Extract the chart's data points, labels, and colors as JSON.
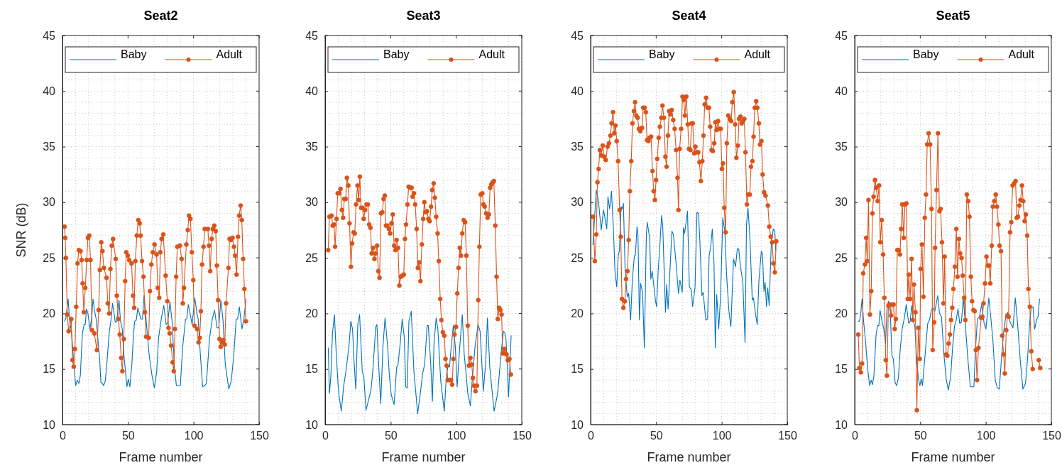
{
  "chart_data": [
    {
      "type": "line",
      "title": "Seat2",
      "xlabel": "Frame number",
      "ylabel": "SNR (dB)",
      "xlim": [
        0,
        150
      ],
      "xticks": [
        0,
        50,
        100,
        150
      ],
      "ylim": [
        10,
        45
      ],
      "yticks": [
        10,
        15,
        20,
        25,
        30,
        35,
        40,
        45
      ],
      "grid": true,
      "legend": "top",
      "series": [
        {
          "name": "Baby",
          "color": "#0072bd",
          "marker": "none",
          "x": [
            1.6,
            2.6,
            4.3,
            5.5,
            7.0,
            8.8,
            10.1,
            11.2,
            12.5,
            13.6,
            15.2,
            16.5,
            17.4,
            18.3,
            19.4,
            21.0,
            22.3,
            23.3,
            24.4,
            25.7,
            28.4,
            29.3,
            30.4,
            31.3,
            32.6,
            33.8,
            35.6,
            37.1,
            38.2,
            40.3,
            41.4,
            43.1,
            44.3,
            45.6,
            47.0,
            49.2,
            50.2,
            51.4,
            52.9,
            54.2,
            55.1,
            56.3,
            57.5,
            59.8,
            61.0,
            62.2,
            63.3,
            66.1,
            68.3,
            70.1,
            71.9,
            73.3,
            75.5,
            77.3,
            79.1,
            80.2,
            82.0,
            83.6,
            85.4,
            86.9,
            89.9,
            91.7,
            93.9,
            94.8,
            96.0,
            97.5,
            98.9,
            100.9,
            102.6,
            103.5,
            105.3,
            106.9,
            108.4,
            109.8,
            112.2,
            114.3,
            116.0,
            117.9,
            119.2,
            120.8,
            122.4,
            124.2,
            126.9,
            128.7,
            130.6,
            132.5,
            133.6,
            134.9,
            136.9,
            138.4,
            140.0
          ],
          "values": [
            19.3,
            19.6,
            21.3,
            19.3,
            18.2,
            15.2,
            13.5,
            14.0,
            13.7,
            14.4,
            18.2,
            19.0,
            19.0,
            20.4,
            20.0,
            18.6,
            19.6,
            21.3,
            20.3,
            19.5,
            15.8,
            13.8,
            13.7,
            13.5,
            13.9,
            15.4,
            18.2,
            19.5,
            20.9,
            19.2,
            19.3,
            21.2,
            19.3,
            18.6,
            16.1,
            13.4,
            14.1,
            13.4,
            15.4,
            18.2,
            19.3,
            19.4,
            20.5,
            19.5,
            19.5,
            21.6,
            20.1,
            16.3,
            14.4,
            13.3,
            14.8,
            17.8,
            19.6,
            20.7,
            19.0,
            19.1,
            21.0,
            19.3,
            15.2,
            13.5,
            13.5,
            17.0,
            19.5,
            19.5,
            20.8,
            19.9,
            19.0,
            21.4,
            20.0,
            19.5,
            16.1,
            13.4,
            13.5,
            13.7,
            17.8,
            19.5,
            20.3,
            18.7,
            18.7,
            21.2,
            19.5,
            15.4,
            13.2,
            13.9,
            16.1,
            19.5,
            19.5,
            20.6,
            18.6,
            19.5,
            21.3
          ]
        },
        {
          "name": "Adult",
          "color": "#d95319",
          "marker": "circle",
          "x": [
            1.6,
            2.1,
            2.6,
            3.7,
            4.7,
            6.7,
            7.6,
            8.6,
            9.5,
            10.5,
            11.5,
            12.5,
            13.8,
            14.6,
            15.4,
            16.3,
            17.4,
            18.5,
            19.4,
            20.5,
            21.4,
            22.5,
            24.3,
            26.3,
            27.6,
            28.5,
            29.6,
            30.5,
            31.6,
            33.6,
            34.6,
            35.6,
            36.6,
            37.6,
            38.6,
            40.6,
            41.5,
            42.6,
            43.7,
            44.8,
            45.7,
            46.8,
            47.8,
            48.7,
            49.8,
            50.9,
            52.7,
            53.8,
            54.7,
            55.6,
            56.7,
            57.8,
            58.9,
            59.6,
            60.7,
            61.8,
            62.9,
            63.8,
            65.8,
            66.7,
            67.8,
            68.9,
            70.2,
            71.8,
            72.7,
            73.8,
            74.7,
            75.6,
            76.9,
            78.7,
            80.0,
            80.9,
            81.8,
            82.9,
            84.0,
            84.9,
            85.8,
            86.7,
            87.6,
            89.6,
            90.9,
            91.8,
            92.7,
            94.5,
            95.6,
            96.5,
            97.6,
            98.7,
            99.8,
            100.7,
            102.7,
            103.8,
            104.7,
            105.6,
            106.5,
            107.6,
            108.5,
            110.9,
            111.8,
            112.7,
            113.8,
            114.7,
            115.8,
            116.9,
            117.8,
            118.7,
            119.8,
            120.7,
            121.8,
            122.7,
            123.8,
            124.8,
            126.6,
            127.5,
            128.6,
            129.7,
            130.8,
            131.7,
            132.8,
            133.9,
            134.8,
            135.9,
            136.8,
            137.8,
            138.8,
            139.9
          ],
          "values": [
            27.8,
            26.8,
            25.0,
            19.9,
            18.4,
            19.5,
            15.8,
            15.2,
            16.8,
            20.6,
            24.5,
            25.7,
            25.6,
            24.8,
            22.7,
            20.1,
            22.3,
            24.8,
            26.8,
            27.0,
            24.8,
            18.5,
            18.2,
            16.7,
            20.3,
            23.9,
            26.4,
            25.6,
            24.1,
            23.2,
            20.9,
            20.0,
            24.0,
            26.1,
            26.7,
            24.9,
            21.6,
            19.5,
            18.1,
            16.0,
            14.8,
            17.7,
            22.9,
            25.5,
            25.2,
            24.8,
            24.5,
            21.6,
            20.5,
            24.7,
            27.0,
            28.4,
            28.1,
            27.0,
            24.7,
            23.3,
            20.1,
            17.9,
            17.8,
            22.0,
            24.4,
            25.5,
            26.2,
            25.3,
            22.3,
            21.4,
            25.5,
            26.7,
            27.1,
            23.4,
            21.1,
            18.7,
            18.2,
            17.1,
            15.6,
            14.8,
            18.6,
            23.3,
            26.0,
            26.1,
            24.9,
            20.9,
            22.3,
            26.2,
            27.5,
            28.8,
            28.5,
            25.5,
            23.0,
            18.9,
            18.6,
            17.4,
            17.8,
            20.2,
            24.4,
            26.0,
            27.6,
            27.6,
            26.1,
            23.8,
            26.7,
            27.6,
            27.9,
            27.4,
            24.3,
            21.2,
            17.7,
            17.0,
            17.4,
            17.6,
            17.2,
            20.9,
            24.1,
            26.7,
            26.6,
            26.8,
            26.0,
            25.2,
            23.5,
            26.9,
            28.8,
            29.7,
            28.4,
            24.9,
            22.2,
            19.3
          ]
        }
      ]
    },
    {
      "type": "line",
      "title": "Seat3",
      "xlabel": "Frame number",
      "xlim": [
        0,
        150
      ],
      "xticks": [
        0,
        50,
        100,
        150
      ],
      "ylim": [
        10,
        45
      ],
      "yticks": [
        10,
        15,
        20,
        25,
        30,
        35,
        40,
        45
      ],
      "grid": true,
      "legend": "top",
      "series": [
        {
          "name": "Baby",
          "color": "#0072bd",
          "marker": "none",
          "x": [
            2.4,
            3.3,
            4.4,
            5.6,
            7.1,
            8.5,
            10.2,
            12.3,
            14.2,
            16.0,
            18.2,
            19.6,
            20.9,
            22.1,
            23.4,
            24.9,
            26.3,
            28.3,
            29.5,
            31.2,
            33.3,
            35.0,
            36.4,
            38.6,
            39.5,
            41.0,
            42.4,
            44.1,
            45.7,
            47.7,
            49.0,
            50.4,
            52.6,
            54.6,
            55.5,
            57.2,
            58.8,
            60.4,
            61.5,
            62.6,
            63.9,
            65.7,
            67.7,
            70.6,
            72.6,
            74.4,
            75.9,
            77.8,
            78.7,
            80.5,
            81.8,
            83.1,
            84.7,
            86.0,
            88.2,
            90.9,
            92.5,
            93.6,
            94.9,
            95.8,
            97.8,
            99.3,
            100.7,
            102.7,
            104.6,
            106.1,
            107.5,
            108.8,
            110.8,
            112.2,
            114.4,
            116.7,
            118.2,
            120.7,
            122.5,
            123.8,
            125.6,
            127.3,
            128.9,
            131.1,
            132.0,
            134.1,
            136.0,
            137.0,
            138.0,
            139.0,
            139.9,
            141.9
          ],
          "values": [
            16.9,
            12.8,
            14.4,
            18.2,
            19.9,
            16.3,
            13.0,
            11.2,
            13.5,
            14.9,
            17.1,
            19.3,
            18.6,
            15.6,
            13.2,
            19.0,
            19.9,
            14.8,
            14.3,
            11.3,
            12.3,
            13.1,
            14.9,
            18.8,
            19.0,
            15.0,
            11.9,
            17.0,
            19.6,
            17.0,
            14.4,
            12.7,
            11.8,
            15.2,
            15.3,
            17.2,
            19.5,
            17.8,
            13.4,
            13.3,
            19.3,
            20.2,
            14.8,
            11.0,
            12.8,
            14.6,
            15.4,
            18.9,
            18.9,
            15.6,
            12.1,
            17.4,
            19.6,
            18.6,
            13.9,
            11.2,
            14.4,
            15.2,
            15.2,
            16.5,
            18.9,
            17.0,
            13.4,
            17.0,
            19.9,
            16.3,
            14.6,
            12.8,
            11.7,
            14.0,
            17.1,
            19.0,
            18.4,
            13.0,
            15.6,
            19.6,
            15.2,
            13.1,
            11.2,
            12.5,
            13.3,
            16.3,
            18.4,
            18.3,
            17.6,
            15.0,
            12.5,
            18.0
          ]
        },
        {
          "name": "Adult",
          "color": "#d95319",
          "marker": "circle",
          "x": [
            2.3,
            3.3,
            4.9,
            5.8,
            6.9,
            7.6,
            8.7,
            9.6,
            10.8,
            11.7,
            12.8,
            13.7,
            14.6,
            15.7,
            16.6,
            17.7,
            18.6,
            19.7,
            20.6,
            21.7,
            22.6,
            23.6,
            24.7,
            25.6,
            26.5,
            27.4,
            28.5,
            29.4,
            30.5,
            31.6,
            32.6,
            33.6,
            34.6,
            35.5,
            36.6,
            37.6,
            38.6,
            39.6,
            40.6,
            41.5,
            42.6,
            43.6,
            44.6,
            45.5,
            46.4,
            47.5,
            48.6,
            49.6,
            50.6,
            51.6,
            52.6,
            53.6,
            54.5,
            55.6,
            56.6,
            57.8,
            58.9,
            60.0,
            60.9,
            61.7,
            62.8,
            63.7,
            64.9,
            66.0,
            66.7,
            67.8,
            68.7,
            69.8,
            70.7,
            71.8,
            72.7,
            73.8,
            74.8,
            75.7,
            76.6,
            77.7,
            78.8,
            79.7,
            80.8,
            81.7,
            82.8,
            83.7,
            84.7,
            85.8,
            86.7,
            87.8,
            88.7,
            89.8,
            90.9,
            91.8,
            92.7,
            93.6,
            94.9,
            96.0,
            96.9,
            97.8,
            98.7,
            99.8,
            100.8,
            101.8,
            102.7,
            103.6,
            104.6,
            105.7,
            106.8,
            107.7,
            108.8,
            109.7,
            110.8,
            111.8,
            112.7,
            113.6,
            114.7,
            115.8,
            116.8,
            117.7,
            118.7,
            119.9,
            120.8,
            121.7,
            122.8,
            123.9,
            124.9,
            125.9,
            126.8,
            127.8,
            128.7,
            129.8,
            130.8,
            131.7,
            132.8,
            133.7,
            134.6,
            135.5,
            136.6,
            137.5,
            138.4,
            139.3,
            140.6,
            141.7
          ],
          "values": [
            25.7,
            28.7,
            28.8,
            27.9,
            28.0,
            26.0,
            28.5,
            30.8,
            30.8,
            31.2,
            29.3,
            28.6,
            30.3,
            30.3,
            32.2,
            31.5,
            28.1,
            24.2,
            26.3,
            27.3,
            27.2,
            29.8,
            31.5,
            30.2,
            32.3,
            29.5,
            29.5,
            28.5,
            29.3,
            29.8,
            29.8,
            28.0,
            27.7,
            25.4,
            25.9,
            24.9,
            25.4,
            26.1,
            23.8,
            23.2,
            29.0,
            29.1,
            30.3,
            30.6,
            27.9,
            27.9,
            27.6,
            27.2,
            28.1,
            28.9,
            26.1,
            25.7,
            26.6,
            25.9,
            22.5,
            23.3,
            23.4,
            23.5,
            26.7,
            28.0,
            29.8,
            31.4,
            31.3,
            31.3,
            30.5,
            30.8,
            29.8,
            27.6,
            24.1,
            24.6,
            22.9,
            26.2,
            28.5,
            30.0,
            29.1,
            29.2,
            28.5,
            28.3,
            29.6,
            31.1,
            31.7,
            30.4,
            28.7,
            27.2,
            24.7,
            21.3,
            19.4,
            18.3,
            18.0,
            15.9,
            15.3,
            14.0,
            14.0,
            14.0,
            13.6,
            15.9,
            18.1,
            18.8,
            21.8,
            24.1,
            25.9,
            25.2,
            27.2,
            28.4,
            28.2,
            25.2,
            18.9,
            15.3,
            16.0,
            15.4,
            14.2,
            13.5,
            13.0,
            13.5,
            21.2,
            26.0,
            30.7,
            30.8,
            29.8,
            29.6,
            29.0,
            28.6,
            28.9,
            31.3,
            31.6,
            31.8,
            31.9,
            27.9,
            23.3,
            19.5,
            20.5,
            20.3,
            19.9,
            16.4,
            16.8,
            16.4,
            16.3,
            15.8,
            15.9,
            14.5
          ]
        }
      ]
    },
    {
      "type": "line",
      "title": "Seat4",
      "xlabel": "Frame number",
      "xlim": [
        0,
        150
      ],
      "xticks": [
        0,
        50,
        100,
        150
      ],
      "ylim": [
        10,
        45
      ],
      "yticks": [
        10,
        15,
        20,
        25,
        30,
        35,
        40,
        45
      ],
      "grid": true,
      "legend": "top",
      "series": [
        {
          "name": "Baby",
          "color": "#0072bd",
          "marker": "none",
          "x": [
            1.8,
            4.3,
            5.9,
            6.9,
            8.1,
            9.2,
            9.9,
            12.3,
            13.2,
            14.5,
            15.9,
            17.4,
            18.6,
            19.9,
            21.1,
            22.0,
            23.2,
            24.1,
            25.0,
            26.3,
            27.9,
            29.0,
            30.5,
            31.9,
            33.4,
            34.1,
            35.4,
            36.1,
            37.2,
            38.1,
            39.6,
            41.0,
            42.5,
            43.2,
            45.0,
            45.9,
            47.0,
            49.4,
            50.3,
            51.5,
            52.8,
            54.1,
            55.0,
            57.1,
            58.0,
            59.1,
            60.9,
            62.0,
            63.1,
            64.9,
            67.0,
            68.1,
            69.9,
            70.8,
            71.7,
            73.9,
            75.3,
            76.9,
            77.8,
            79.6,
            81.1,
            82.3,
            83.4,
            84.9,
            85.8,
            87.9,
            89.2,
            90.4,
            91.5,
            92.8,
            94.1,
            95.1,
            96.2,
            97.7,
            99.1,
            100.8,
            102.4,
            103.7,
            105.5,
            107.0,
            109.0,
            110.5,
            111.9,
            113.0,
            114.3,
            116.1,
            117.8,
            118.9,
            120.0,
            121.4,
            123.3,
            124.2,
            125.6,
            127.1,
            128.4,
            130.2,
            131.1,
            132.2,
            133.1,
            134.2,
            135.1,
            136.2,
            137.8,
            139.3,
            140.5,
            141.2
          ],
          "values": [
            26.2,
            31.1,
            30.2,
            28.9,
            27.5,
            28.7,
            29.3,
            27.6,
            30.5,
            29.4,
            31.0,
            27.5,
            23.7,
            22.4,
            25.2,
            25.7,
            29.6,
            29.4,
            29.9,
            24.0,
            21.5,
            21.8,
            19.4,
            23.2,
            25.2,
            25.2,
            27.8,
            27.1,
            19.4,
            22.7,
            21.9,
            16.9,
            27.1,
            28.2,
            26.8,
            23.1,
            23.8,
            21.2,
            20.6,
            23.8,
            26.1,
            28.8,
            27.9,
            20.1,
            22.6,
            20.4,
            24.8,
            27.4,
            27.1,
            24.9,
            21.8,
            23.0,
            21.9,
            27.7,
            27.2,
            29.2,
            22.4,
            22.1,
            20.6,
            22.3,
            29.1,
            29.0,
            26.3,
            21.6,
            21.9,
            19.4,
            19.5,
            25.2,
            25.9,
            27.6,
            24.5,
            16.9,
            21.7,
            18.6,
            21.5,
            28.6,
            27.4,
            23.5,
            20.2,
            18.8,
            24.9,
            24.2,
            25.8,
            25.8,
            24.2,
            22.8,
            17.4,
            28.0,
            29.5,
            27.1,
            21.2,
            21.4,
            20.1,
            19.0,
            23.0,
            25.6,
            25.3,
            22.0,
            22.8,
            20.6,
            22.3,
            20.7,
            26.3,
            27.6,
            27.4,
            25.6
          ]
        },
        {
          "name": "Adult",
          "color": "#d95319",
          "marker": "circle",
          "x": [
            1.8,
            3.2,
            4.3,
            5.2,
            6.1,
            7.0,
            8.1,
            9.2,
            10.4,
            11.5,
            12.9,
            14.0,
            15.1,
            16.0,
            17.1,
            18.0,
            19.0,
            19.9,
            21.0,
            22.1,
            23.0,
            23.9,
            25.0,
            26.1,
            27.0,
            28.1,
            29.0,
            29.9,
            31.0,
            31.9,
            33.0,
            33.9,
            34.8,
            35.9,
            36.8,
            37.9,
            39.2,
            40.1,
            41.2,
            42.1,
            43.0,
            44.1,
            45.0,
            46.1,
            47.2,
            48.1,
            49.0,
            49.9,
            50.8,
            51.9,
            52.8,
            53.9,
            54.8,
            55.9,
            57.0,
            57.9,
            59.0,
            59.9,
            60.8,
            61.9,
            63.0,
            64.1,
            65.2,
            66.3,
            67.0,
            67.9,
            69.0,
            70.1,
            71.0,
            71.9,
            73.0,
            74.1,
            75.0,
            76.1,
            77.0,
            77.9,
            79.0,
            79.9,
            81.0,
            82.1,
            83.0,
            84.1,
            85.2,
            86.1,
            87.0,
            88.1,
            89.2,
            90.3,
            91.2,
            92.3,
            93.2,
            94.3,
            95.2,
            96.1,
            97.2,
            98.1,
            99.2,
            100.1,
            101.0,
            101.9,
            103.0,
            103.9,
            105.0,
            106.1,
            107.2,
            108.1,
            109.2,
            110.3,
            111.2,
            112.3,
            113.2,
            114.3,
            115.2,
            116.1,
            117.2,
            118.1,
            119.2,
            120.3,
            121.4,
            122.3,
            123.4,
            124.3,
            125.2,
            126.3,
            127.2,
            128.3,
            129.2,
            130.3,
            131.2,
            132.3,
            133.4,
            135.2,
            136.3,
            137.4,
            138.5,
            139.4,
            140.5,
            141.6
          ],
          "values": [
            28.7,
            24.7,
            27.1,
            31.8,
            33.0,
            34.7,
            34.2,
            35.1,
            34.1,
            33.8,
            35.0,
            35.3,
            36.0,
            37.1,
            38.1,
            36.2,
            36.9,
            35.5,
            33.7,
            29.3,
            26.9,
            21.3,
            20.5,
            21.1,
            23.1,
            23.8,
            26.6,
            31.0,
            33.7,
            37.1,
            38.2,
            39.0,
            37.8,
            37.6,
            36.6,
            36.4,
            36.7,
            38.5,
            38.5,
            38.1,
            35.6,
            35.5,
            35.8,
            35.9,
            32.8,
            31.0,
            30.2,
            32.0,
            33.9,
            35.8,
            36.8,
            37.6,
            38.7,
            37.6,
            34.1,
            33.2,
            36.0,
            38.2,
            37.9,
            38.3,
            37.4,
            36.6,
            34.7,
            32.2,
            29.3,
            34.8,
            36.6,
            39.5,
            39.2,
            37.8,
            39.5,
            37.0,
            34.8,
            34.7,
            37.1,
            37.1,
            34.4,
            35.0,
            34.5,
            34.5,
            33.6,
            31.9,
            33.7,
            36.0,
            38.8,
            39.4,
            38.5,
            38.5,
            36.8,
            34.7,
            34.6,
            35.3,
            37.2,
            36.5,
            37.3,
            36.6,
            36.6,
            33.0,
            33.5,
            29.5,
            27.3,
            35.3,
            37.8,
            37.5,
            37.3,
            39.0,
            39.9,
            37.0,
            34.0,
            35.1,
            37.5,
            37.7,
            37.1,
            37.3,
            37.5,
            34.5,
            29.8,
            30.7,
            30.7,
            33.2,
            33.7,
            35.9,
            38.5,
            39.1,
            38.5,
            37.1,
            35.2,
            35.5,
            32.5,
            30.9,
            30.6,
            29.7,
            27.8,
            26.9,
            26.4,
            24.5,
            23.7,
            26.5
          ]
        }
      ]
    },
    {
      "type": "line",
      "title": "Seat5",
      "xlabel": "Frame number",
      "xlim": [
        0,
        150
      ],
      "xticks": [
        0,
        50,
        100,
        150
      ],
      "ylim": [
        10,
        45
      ],
      "yticks": [
        10,
        15,
        20,
        25,
        30,
        35,
        40,
        45
      ],
      "grid": true,
      "legend": "top",
      "series": [
        {
          "name": "Baby",
          "color": "#0072bd",
          "marker": "none",
          "x": [
            2.7,
            3.6,
            4.5,
            5.6,
            6.7,
            8.1,
            9.9,
            11.4,
            12.5,
            13.5,
            14.6,
            16.3,
            17.5,
            18.4,
            19.3,
            20.8,
            22.2,
            23.5,
            24.7,
            25.7,
            27.1,
            28.4,
            29.5,
            30.8,
            32.0,
            33.3,
            34.8,
            36.2,
            37.9,
            39.3,
            41.2,
            42.3,
            43.5,
            44.8,
            45.9,
            47.0,
            48.5,
            49.7,
            50.8,
            51.7,
            53.0,
            54.4,
            55.7,
            57.1,
            58.4,
            59.5,
            61.1,
            63.3,
            64.7,
            66.2,
            68.0,
            69.8,
            71.4,
            73.2,
            74.7,
            76.1,
            77.4,
            78.8,
            80.1,
            81.4,
            82.8,
            84.3,
            86.1,
            88.2,
            90.9,
            92.2,
            93.6,
            95.1,
            96.9,
            98.7,
            100.1,
            102.3,
            103.7,
            105.4,
            107.2,
            108.8,
            110.3,
            112.1,
            113.7,
            115.3,
            116.8,
            118.6,
            120.7,
            122.5,
            124.3,
            126.2,
            128.3,
            130.3,
            131.9,
            133.4,
            134.6,
            136.0,
            137.3,
            138.7,
            139.8,
            141.0
          ],
          "values": [
            19.3,
            19.3,
            19.9,
            21.3,
            19.4,
            17.7,
            15.0,
            13.5,
            14.0,
            13.6,
            14.3,
            18.1,
            18.9,
            18.9,
            20.3,
            19.3,
            18.6,
            17.3,
            20.5,
            21.1,
            20.2,
            16.2,
            15.9,
            13.8,
            13.5,
            14.2,
            16.9,
            18.6,
            19.6,
            20.8,
            19.1,
            19.3,
            20.7,
            19.3,
            18.8,
            16.4,
            14.2,
            13.5,
            14.1,
            13.5,
            15.3,
            17.3,
            19.1,
            19.4,
            20.3,
            20.5,
            20.2,
            21.6,
            20.0,
            19.7,
            16.4,
            14.1,
            13.1,
            14.3,
            17.0,
            18.8,
            19.4,
            20.4,
            19.1,
            19.2,
            21.4,
            19.2,
            16.2,
            13.4,
            13.4,
            16.9,
            19.5,
            19.7,
            20.8,
            19.1,
            18.6,
            21.4,
            19.8,
            17.6,
            14.0,
            13.3,
            13.2,
            16.2,
            18.4,
            19.8,
            20.1,
            19.2,
            18.7,
            21.4,
            19.0,
            15.9,
            13.2,
            13.7,
            16.0,
            19.1,
            20.5,
            20.6,
            18.6,
            19.4,
            19.7,
            21.3
          ]
        },
        {
          "name": "Adult",
          "color": "#d95319",
          "marker": "circle",
          "x": [
            2.7,
            3.6,
            4.7,
            5.6,
            6.5,
            7.8,
            8.7,
            9.6,
            10.5,
            11.6,
            12.6,
            13.5,
            14.4,
            15.5,
            16.4,
            17.5,
            18.6,
            19.5,
            20.6,
            21.7,
            22.6,
            23.7,
            24.6,
            25.7,
            26.8,
            27.8,
            28.7,
            29.6,
            30.5,
            31.4,
            32.5,
            33.6,
            34.5,
            35.4,
            36.3,
            37.4,
            38.3,
            39.4,
            40.5,
            41.2,
            42.3,
            43.4,
            44.3,
            45.2,
            46.3,
            47.4,
            48.5,
            49.6,
            50.3,
            51.3,
            52.4,
            53.5,
            54.4,
            55.3,
            56.4,
            57.5,
            58.6,
            59.5,
            60.6,
            61.3,
            62.4,
            63.5,
            64.6,
            65.5,
            66.6,
            67.7,
            68.6,
            69.7,
            70.6,
            71.7,
            72.6,
            73.5,
            74.4,
            75.3,
            76.4,
            77.5,
            78.4,
            79.5,
            80.4,
            81.5,
            82.4,
            83.5,
            84.4,
            85.5,
            86.6,
            87.5,
            88.6,
            89.5,
            90.6,
            91.5,
            92.4,
            93.3,
            94.4,
            96.5,
            97.4,
            98.3,
            99.4,
            100.5,
            101.6,
            102.5,
            103.4,
            104.5,
            105.4,
            106.5,
            107.6,
            108.5,
            109.6,
            110.5,
            111.6,
            112.5,
            113.6,
            114.5,
            115.6,
            116.5,
            117.4,
            118.5,
            119.4,
            120.5,
            121.6,
            122.7,
            123.6,
            124.5,
            125.6,
            126.5,
            127.6,
            128.5,
            129.6,
            130.5,
            131.6,
            132.5,
            133.6,
            134.7,
            135.8,
            138.0,
            140.4,
            141.5
          ],
          "values": [
            18.1,
            15.1,
            14.7,
            15.5,
            23.6,
            24.4,
            26.8,
            24.7,
            30.2,
            19.9,
            22.0,
            29.0,
            30.5,
            32.0,
            31.3,
            30.1,
            31.5,
            26.4,
            28.4,
            25.3,
            21.4,
            15.8,
            14.4,
            20.7,
            20.8,
            19.8,
            20.8,
            20.8,
            18.6,
            19.5,
            25.7,
            25.7,
            25.3,
            27.6,
            29.8,
            26.8,
            29.8,
            29.9,
            21.3,
            23.5,
            21.3,
            24.9,
            19.4,
            22.6,
            20.1,
            11.3,
            18.7,
            15.9,
            24.0,
            26.2,
            21.5,
            28.6,
            30.7,
            35.2,
            36.2,
            35.2,
            29.4,
            16.7,
            19.2,
            25.9,
            31.1,
            36.2,
            29.2,
            29.4,
            26.4,
            20.9,
            25.1,
            16.3,
            16.2,
            17.3,
            18.1,
            19.4,
            20.5,
            22.2,
            24.2,
            27.6,
            23.3,
            26.7,
            25.4,
            25.0,
            23.4,
            21.4,
            19.4,
            30.7,
            30.1,
            28.7,
            23.3,
            21.1,
            20.3,
            20.2,
            16.7,
            14.0,
            16.9,
            19.6,
            19.7,
            20.9,
            22.7,
            25.1,
            24.3,
            24.3,
            22.7,
            26.1,
            29.6,
            30.1,
            30.7,
            29.6,
            28.0,
            26.1,
            25.6,
            18.0,
            16.3,
            14.6,
            18.5,
            19.8,
            19.7,
            27.3,
            28.2,
            31.5,
            31.7,
            31.9,
            28.6,
            28.7,
            29.7,
            30.2,
            31.5,
            30.1,
            28.3,
            28.9,
            27.0,
            22.2,
            20.6,
            16.6,
            15.0,
            null,
            15.8,
            15.1
          ]
        }
      ]
    }
  ]
}
